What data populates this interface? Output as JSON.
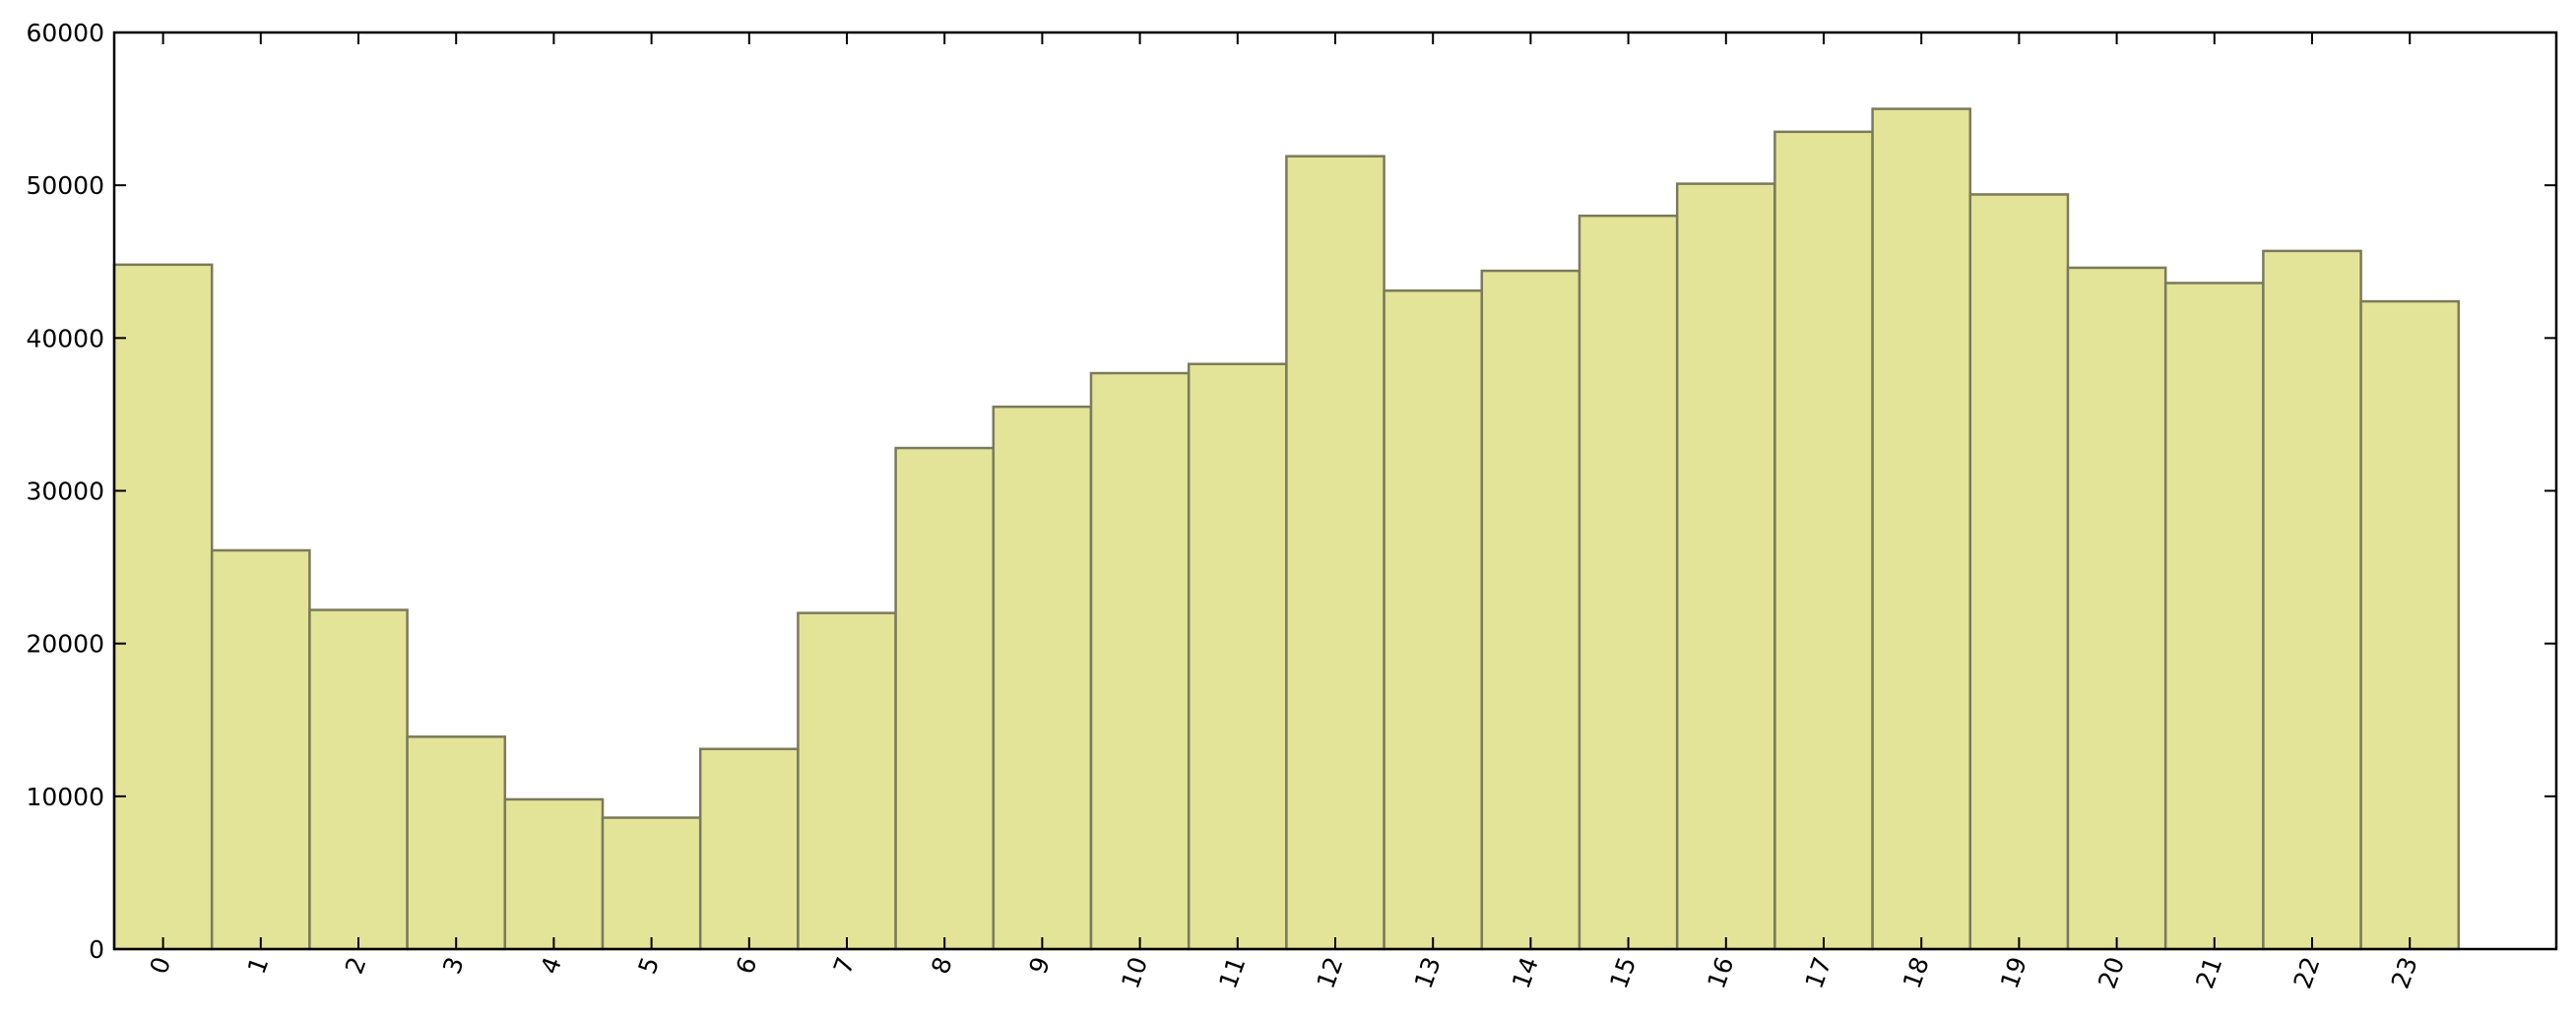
{
  "chart_data": {
    "type": "bar",
    "categories": [
      "0",
      "1",
      "2",
      "3",
      "4",
      "5",
      "6",
      "7",
      "8",
      "9",
      "10",
      "11",
      "12",
      "13",
      "14",
      "15",
      "16",
      "17",
      "18",
      "19",
      "20",
      "21",
      "22",
      "23"
    ],
    "values": [
      44800,
      26100,
      22200,
      13900,
      9800,
      8600,
      13100,
      22000,
      32800,
      35500,
      37700,
      38300,
      51900,
      43100,
      44400,
      48000,
      50100,
      53500,
      55000,
      49400,
      44600,
      43600,
      45700,
      42400
    ],
    "title": "",
    "xlabel": "",
    "ylabel": "",
    "ylim": [
      0,
      60000
    ],
    "xlim": [
      0,
      25
    ],
    "yticks": [
      "0",
      "10000",
      "20000",
      "30000",
      "40000",
      "50000",
      "60000"
    ],
    "grid": false,
    "legend": "none",
    "colors": {
      "bar_fill": "#e4e499",
      "bar_stroke": "#7a7a5c"
    }
  }
}
